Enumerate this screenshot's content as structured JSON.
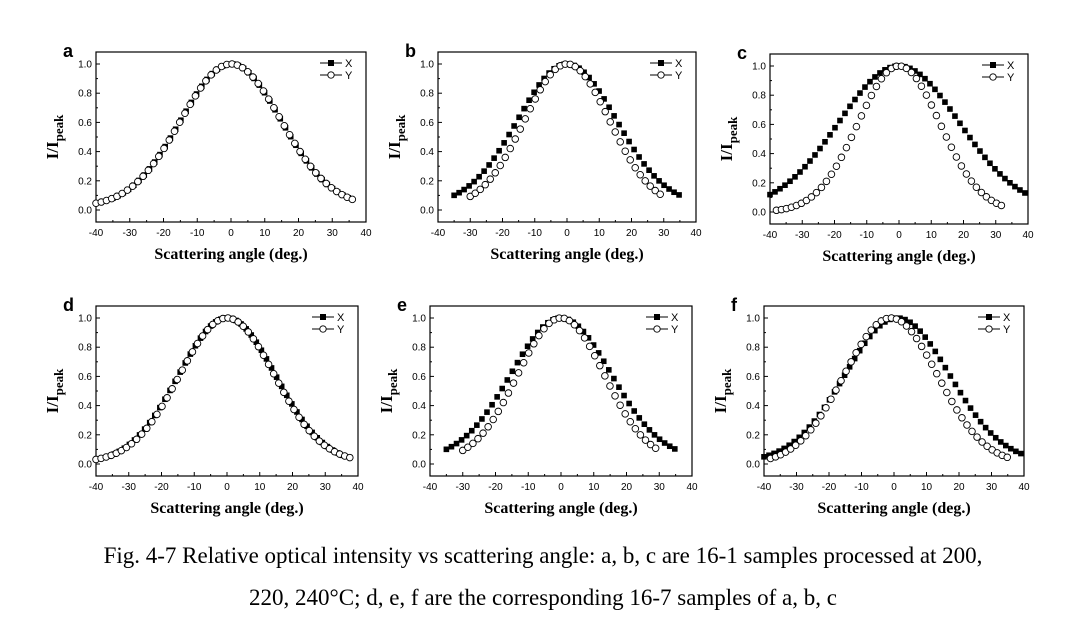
{
  "chart_data": [
    {
      "panel": "a",
      "type": "scatter",
      "xlabel": "Scattering angle (deg.)",
      "ylabel_main": "I/I",
      "ylabel_sub": "peak",
      "xlim": [
        -40,
        40
      ],
      "ylim": [
        0,
        1.0
      ],
      "xticks": [
        "-40",
        "-30",
        "-20",
        "-10",
        "0",
        "10",
        "20",
        "30",
        "40"
      ],
      "yticks": [
        "0.0",
        "0.2",
        "0.4",
        "0.6",
        "0.8",
        "1.0"
      ],
      "legend_position": "top-right",
      "series": [
        {
          "name": "X",
          "marker": "filled-square",
          "x_range": [
            -35,
            35
          ],
          "peak_x": 0,
          "fwhm": 35,
          "baseline": 0.02
        },
        {
          "name": "Y",
          "marker": "open-circle",
          "x_range": [
            -40,
            36
          ],
          "peak_x": 0,
          "fwhm": 35,
          "baseline": 0.02
        }
      ]
    },
    {
      "panel": "b",
      "type": "scatter",
      "xlabel": "Scattering angle (deg.)",
      "ylabel_main": "I/I",
      "ylabel_sub": "peak",
      "xlim": [
        -40,
        40
      ],
      "ylim": [
        0,
        1.0
      ],
      "xticks": [
        "-40",
        "-30",
        "-20",
        "-10",
        "0",
        "10",
        "20",
        "30",
        "40"
      ],
      "yticks": [
        "0.0",
        "0.2",
        "0.4",
        "0.6",
        "0.8",
        "1.0"
      ],
      "legend_position": "top-right",
      "series": [
        {
          "name": "X",
          "marker": "filled-square",
          "x_range": [
            -35,
            35
          ],
          "peak_x": 0,
          "fwhm": 36,
          "baseline": 0.03
        },
        {
          "name": "Y",
          "marker": "open-circle",
          "x_range": [
            -30,
            30
          ],
          "peak_x": 0,
          "fwhm": 31,
          "baseline": 0.02
        }
      ]
    },
    {
      "panel": "c",
      "type": "scatter",
      "xlabel": "Scattering angle (deg.)",
      "ylabel_main": "I/I",
      "ylabel_sub": "peak",
      "xlim": [
        -40,
        40
      ],
      "ylim": [
        0,
        1.0
      ],
      "xticks": [
        "-40",
        "-30",
        "-20",
        "-10",
        "0",
        "10",
        "20",
        "30",
        "40"
      ],
      "yticks": [
        "0.0",
        "0.2",
        "0.4",
        "0.6",
        "0.8",
        "1.0"
      ],
      "legend_position": "top-right",
      "series": [
        {
          "name": "X",
          "marker": "filled-square",
          "x_range": [
            -40,
            40
          ],
          "peak_x": 0,
          "fwhm": 44,
          "baseline": 0.02
        },
        {
          "name": "Y",
          "marker": "open-circle",
          "x_range": [
            -38,
            33
          ],
          "peak_x": 0,
          "fwhm": 30,
          "baseline": 0.0
        }
      ]
    },
    {
      "panel": "d",
      "type": "scatter",
      "xlabel": "Scattering angle (deg.)",
      "ylabel_main": "I/I",
      "ylabel_sub": "peak",
      "xlim": [
        -40,
        40
      ],
      "ylim": [
        0,
        1.0
      ],
      "xticks": [
        "-40",
        "-30",
        "-20",
        "-10",
        "0",
        "10",
        "20",
        "30",
        "40"
      ],
      "yticks": [
        "0.0",
        "0.2",
        "0.4",
        "0.6",
        "0.8",
        "1.0"
      ],
      "legend_position": "top-right",
      "series": [
        {
          "name": "X",
          "marker": "filled-square",
          "x_range": [
            -36,
            36
          ],
          "peak_x": 0,
          "fwhm": 35,
          "baseline": 0.0
        },
        {
          "name": "Y",
          "marker": "open-circle",
          "x_range": [
            -40,
            38
          ],
          "peak_x": 0,
          "fwhm": 34,
          "baseline": 0.01
        }
      ]
    },
    {
      "panel": "e",
      "type": "scatter",
      "xlabel": "Scattering angle (deg.)",
      "ylabel_main": "I/I",
      "ylabel_sub": "peak",
      "xlim": [
        -40,
        40
      ],
      "ylim": [
        0,
        1.0
      ],
      "xticks": [
        "-40",
        "-30",
        "-20",
        "-10",
        "0",
        "10",
        "20",
        "30",
        "40"
      ],
      "yticks": [
        "0.0",
        "0.2",
        "0.4",
        "0.6",
        "0.8",
        "1.0"
      ],
      "legend_position": "top-right",
      "series": [
        {
          "name": "X",
          "marker": "filled-square",
          "x_range": [
            -35,
            35
          ],
          "peak_x": 0,
          "fwhm": 36,
          "baseline": 0.03
        },
        {
          "name": "Y",
          "marker": "open-circle",
          "x_range": [
            -30,
            30
          ],
          "peak_x": 0,
          "fwhm": 31,
          "baseline": 0.02
        }
      ]
    },
    {
      "panel": "f",
      "type": "scatter",
      "xlabel": "Scattering angle (deg.)",
      "ylabel_main": "I/I",
      "ylabel_sub": "peak",
      "xlim": [
        -40,
        40
      ],
      "ylim": [
        0,
        1.0
      ],
      "xticks": [
        "-40",
        "-30",
        "-20",
        "-10",
        "0",
        "10",
        "20",
        "30",
        "40"
      ],
      "yticks": [
        "0.0",
        "0.2",
        "0.4",
        "0.6",
        "0.8",
        "1.0"
      ],
      "legend_position": "top-right",
      "series": [
        {
          "name": "X",
          "marker": "filled-square",
          "x_range": [
            -40,
            40
          ],
          "peak_x": 1,
          "fwhm": 38,
          "baseline": 0.01
        },
        {
          "name": "Y",
          "marker": "open-circle",
          "x_range": [
            -38,
            35
          ],
          "peak_x": -1,
          "fwhm": 34,
          "baseline": 0.0
        }
      ]
    }
  ],
  "caption": {
    "line1": "Fig. 4-7 Relative optical intensity vs scattering angle: a, b, c are 16-1 samples processed at 200,",
    "line2": "220, 240°C; d, e, f are the corresponding 16-7 samples of a, b, c"
  }
}
